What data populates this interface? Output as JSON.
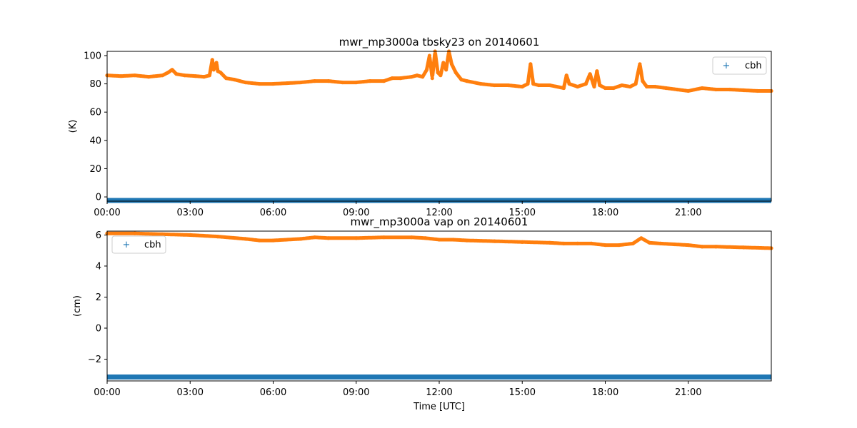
{
  "colors": {
    "tbsky_series": "#ff7f0e",
    "cbh_series": "#1f77b4",
    "axes": "#000000",
    "legend_frame": "#cccccc"
  },
  "chart_data": [
    {
      "type": "scatter",
      "title": "mwr_mp3000a tbsky23 on 20140601",
      "xlabel": "",
      "ylabel": "(K)",
      "xlim_hours": [
        0,
        24
      ],
      "ylim": [
        -3,
        103
      ],
      "x_ticks": [
        "00:00",
        "03:00",
        "06:00",
        "09:00",
        "12:00",
        "15:00",
        "18:00",
        "21:00"
      ],
      "y_ticks": [
        "0",
        "20",
        "40",
        "60",
        "80",
        "100"
      ],
      "legend": {
        "position": "upper right",
        "entries": [
          "cbh"
        ]
      },
      "series": [
        {
          "name": "cbh",
          "marker": "+",
          "note_level": -2.5,
          "x_hours": [
            0,
            24
          ],
          "y": [
            -2.5,
            -2.5
          ]
        },
        {
          "name": "",
          "marker": "o",
          "x_hours": [
            0.0,
            0.5,
            1.0,
            1.5,
            2.0,
            2.2,
            2.35,
            2.5,
            2.8,
            3.2,
            3.5,
            3.7,
            3.8,
            3.85,
            3.95,
            4.0,
            4.1,
            4.3,
            4.6,
            5.0,
            5.5,
            6.0,
            6.5,
            7.0,
            7.5,
            8.0,
            8.5,
            9.0,
            9.5,
            10.0,
            10.3,
            10.6,
            11.0,
            11.2,
            11.4,
            11.55,
            11.65,
            11.75,
            11.85,
            11.95,
            12.05,
            12.15,
            12.25,
            12.35,
            12.45,
            12.6,
            12.8,
            13.0,
            13.5,
            14.0,
            14.5,
            15.0,
            15.2,
            15.3,
            15.4,
            15.6,
            16.0,
            16.5,
            16.6,
            16.7,
            17.0,
            17.3,
            17.45,
            17.6,
            17.7,
            17.8,
            18.0,
            18.3,
            18.6,
            18.9,
            19.1,
            19.25,
            19.35,
            19.5,
            19.8,
            20.2,
            20.6,
            21.0,
            21.5,
            22.0,
            22.5,
            23.0,
            23.5,
            24.0
          ],
          "y": [
            86,
            85.5,
            86,
            85,
            86,
            88,
            90,
            87,
            86,
            85.5,
            85,
            86,
            97,
            90,
            95,
            89,
            88,
            84,
            83,
            81,
            80,
            80,
            80.5,
            81,
            82,
            82,
            81,
            81,
            82,
            82,
            84,
            84,
            85,
            86,
            85,
            90,
            100,
            84,
            103,
            88,
            86,
            95,
            90,
            103,
            94,
            88,
            83,
            82,
            80,
            79,
            79,
            78,
            80,
            94,
            80,
            79,
            79,
            77,
            86,
            80,
            78,
            80,
            87,
            78,
            89,
            79,
            77,
            77,
            79,
            78,
            80,
            94,
            82,
            78,
            78,
            77,
            76,
            75,
            77,
            76,
            76,
            75.5,
            75,
            75
          ]
        }
      ]
    },
    {
      "type": "scatter",
      "title": "mwr_mp3000a vap on 20140601",
      "xlabel": "Time [UTC]",
      "ylabel": "(cm)",
      "xlim_hours": [
        0,
        24
      ],
      "ylim": [
        -3.4,
        6.25
      ],
      "x_ticks": [
        "00:00",
        "03:00",
        "06:00",
        "09:00",
        "12:00",
        "15:00",
        "18:00",
        "21:00"
      ],
      "y_ticks": [
        "6",
        "4",
        "2",
        "0",
        "−2"
      ],
      "legend": {
        "position": "upper left",
        "entries": [
          "cbh"
        ]
      },
      "series": [
        {
          "name": "cbh",
          "marker": "+",
          "x_hours": [
            0,
            24
          ],
          "y": [
            -3.15,
            -3.15
          ]
        },
        {
          "name": "",
          "marker": "o",
          "x_hours": [
            0,
            1,
            2,
            3,
            4,
            5,
            5.5,
            6,
            7,
            7.5,
            8,
            9,
            10,
            11,
            11.5,
            12,
            12.5,
            13,
            14,
            15,
            16,
            16.5,
            17,
            17.5,
            18,
            18.5,
            19,
            19.3,
            19.6,
            20,
            20.5,
            21,
            21.5,
            22,
            23,
            24
          ],
          "y": [
            6.1,
            6.1,
            6.05,
            6.0,
            5.9,
            5.75,
            5.65,
            5.65,
            5.75,
            5.85,
            5.8,
            5.8,
            5.85,
            5.85,
            5.8,
            5.7,
            5.7,
            5.65,
            5.6,
            5.55,
            5.5,
            5.45,
            5.45,
            5.45,
            5.35,
            5.35,
            5.45,
            5.8,
            5.5,
            5.45,
            5.4,
            5.35,
            5.25,
            5.25,
            5.2,
            5.15
          ]
        }
      ]
    }
  ]
}
